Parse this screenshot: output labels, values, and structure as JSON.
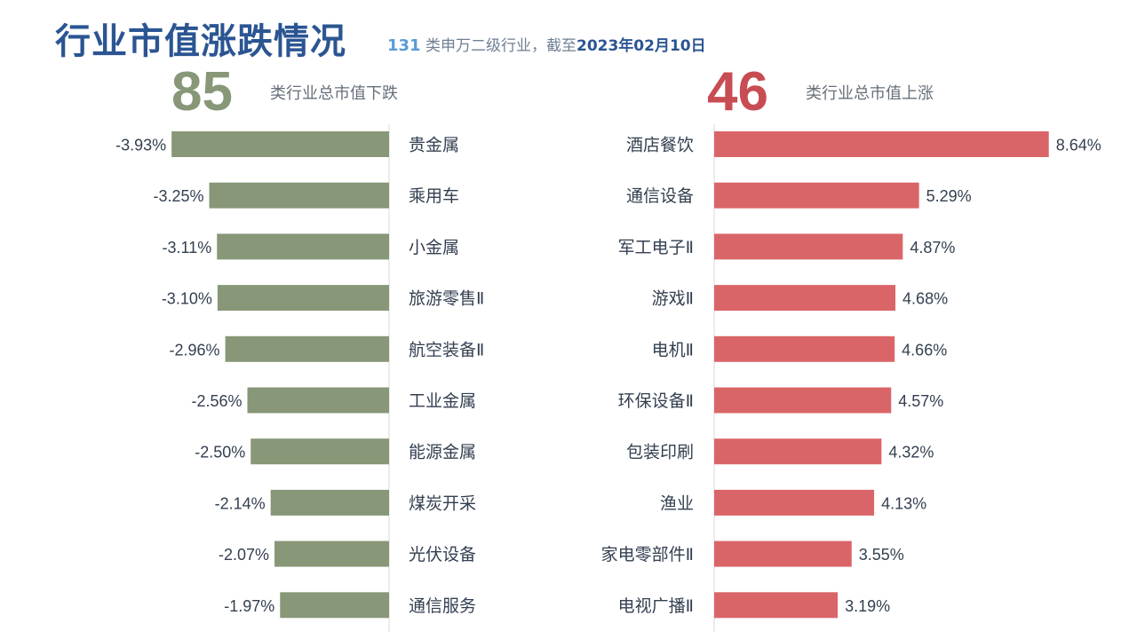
{
  "header": {
    "title": "行业市值涨跌情况",
    "count": "131",
    "desc": "类申万二级行业，截至",
    "date": "2023年02月10日"
  },
  "down_panel": {
    "count": "85",
    "caption": "类行业总市值下跌"
  },
  "up_panel": {
    "count": "46",
    "caption": "类行业总市值上涨"
  },
  "colors": {
    "down_bar": "#879777",
    "up_bar": "#da6568",
    "title": "#2b5592"
  },
  "chart_data": [
    {
      "type": "bar",
      "orientation": "horizontal",
      "categories": [
        "贵金属",
        "乘用车",
        "小金属",
        "旅游零售Ⅱ",
        "航空装备Ⅱ",
        "工业金属",
        "能源金属",
        "煤炭开采",
        "光伏设备",
        "通信服务"
      ],
      "values": [
        -3.93,
        -3.25,
        -3.11,
        -3.1,
        -2.96,
        -2.56,
        -2.5,
        -2.14,
        -2.07,
        -1.97
      ],
      "labels": [
        "-3.93%",
        "-3.25%",
        "-3.11%",
        "-3.10%",
        "-2.96%",
        "-2.56%",
        "-2.50%",
        "-2.14%",
        "-2.07%",
        "-1.97%"
      ],
      "title": "",
      "xlabel": "",
      "ylabel": "",
      "grid": false,
      "legend": "none"
    },
    {
      "type": "bar",
      "orientation": "horizontal",
      "categories": [
        "酒店餐饮",
        "通信设备",
        "军工电子Ⅱ",
        "游戏Ⅱ",
        "电机Ⅱ",
        "环保设备Ⅱ",
        "包装印刷",
        "渔业",
        "家电零部件Ⅱ",
        "电视广播Ⅱ"
      ],
      "values": [
        8.64,
        5.29,
        4.87,
        4.68,
        4.66,
        4.57,
        4.32,
        4.13,
        3.55,
        3.19
      ],
      "labels": [
        "8.64%",
        "5.29%",
        "4.87%",
        "4.68%",
        "4.66%",
        "4.57%",
        "4.32%",
        "4.13%",
        "3.55%",
        "3.19%"
      ],
      "title": "",
      "xlabel": "",
      "ylabel": "",
      "grid": false,
      "legend": "none"
    }
  ]
}
